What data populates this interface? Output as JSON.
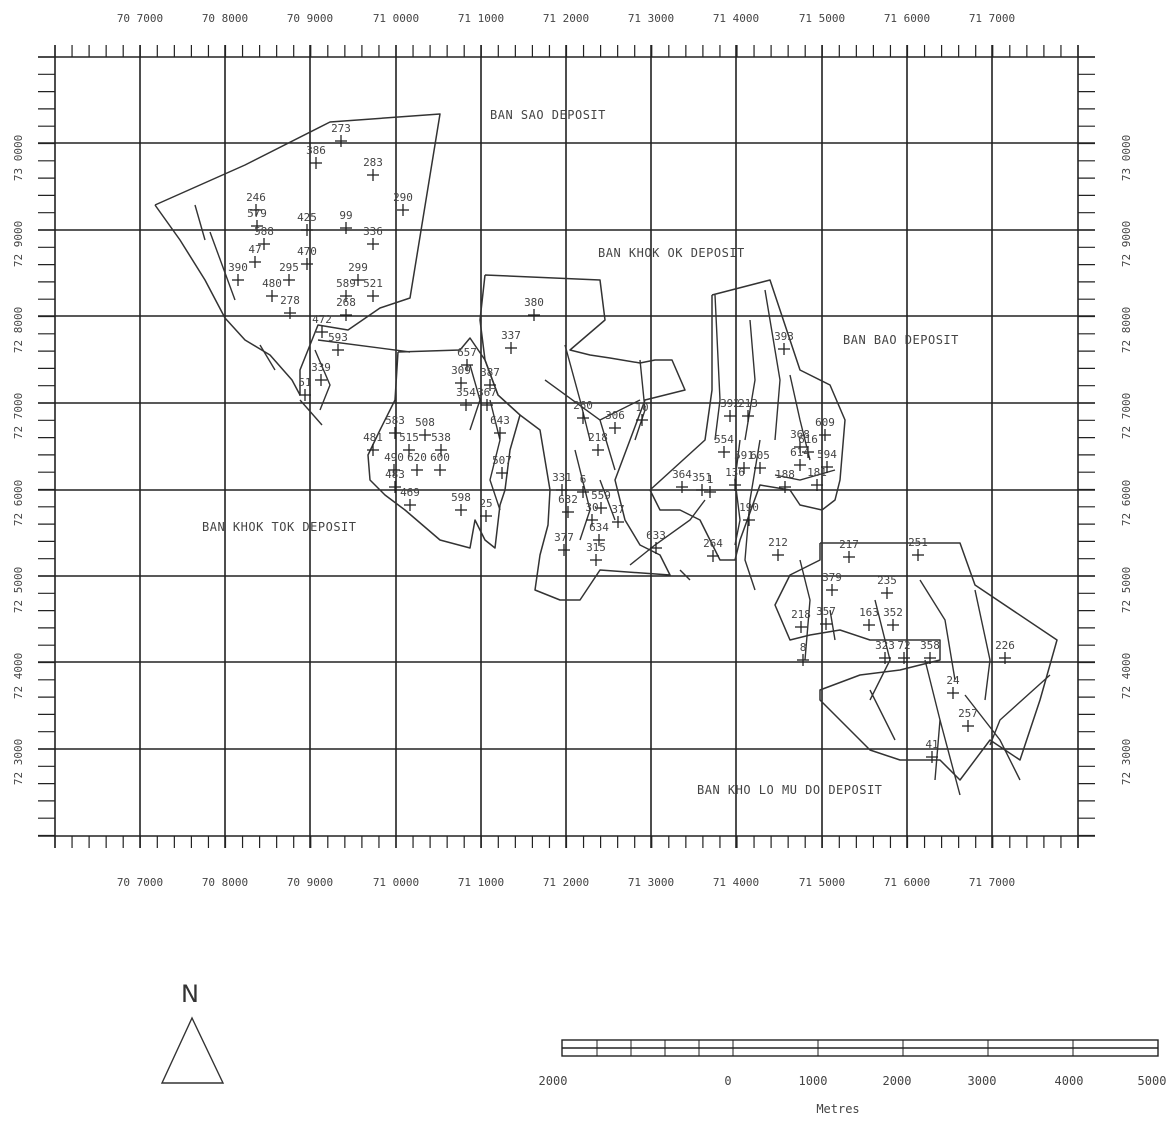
{
  "map": {
    "easting_labels": [
      "70 7000",
      "70 8000",
      "70 9000",
      "71 0000",
      "71 1000",
      "71 2000",
      "71 3000",
      "71 4000",
      "71 5000",
      "71 6000",
      "71 7000"
    ],
    "northing_labels": [
      "73 0000",
      "72 9000",
      "72 8000",
      "72 7000",
      "72 6000",
      "72 5000",
      "72 4000",
      "72 3000"
    ],
    "deposits": [
      {
        "name": "BAN SAO DEPOSIT"
      },
      {
        "name": "BAN KHOK OK DEPOSIT"
      },
      {
        "name": "BAN BAO DEPOSIT"
      },
      {
        "name": "BAN KHOK TOK DEPOSIT"
      },
      {
        "name": "BAN KHO LO MU DO DEPOSIT"
      }
    ],
    "drill_holes": [
      "273",
      "386",
      "283",
      "290",
      "246",
      "579",
      "425",
      "99",
      "336",
      "588",
      "47",
      "470",
      "390",
      "295",
      "299",
      "480",
      "589",
      "521",
      "278",
      "268",
      "472",
      "593",
      "339",
      "51",
      "657",
      "309",
      "387",
      "354",
      "367",
      "643",
      "380",
      "337",
      "583",
      "508",
      "481",
      "515",
      "538",
      "490",
      "620",
      "600",
      "483",
      "469",
      "598",
      "507",
      "331",
      "632",
      "25",
      "6",
      "260",
      "306",
      "10",
      "218",
      "634",
      "377",
      "315",
      "633",
      "559",
      "37",
      "30",
      "264",
      "393",
      "392",
      "213",
      "609",
      "368",
      "616",
      "614",
      "594",
      "554",
      "591",
      "605",
      "188",
      "181",
      "364",
      "351",
      "1",
      "136",
      "190",
      "212",
      "217",
      "251",
      "379",
      "235",
      "163",
      "352",
      "218",
      "357",
      "8",
      "323",
      "72",
      "358",
      "226",
      "24",
      "257",
      "41"
    ],
    "north_label": "N",
    "scale_labels": [
      "2000",
      "0",
      "1000",
      "2000",
      "3000",
      "4000",
      "5000"
    ],
    "scale_unit": "Metres"
  }
}
